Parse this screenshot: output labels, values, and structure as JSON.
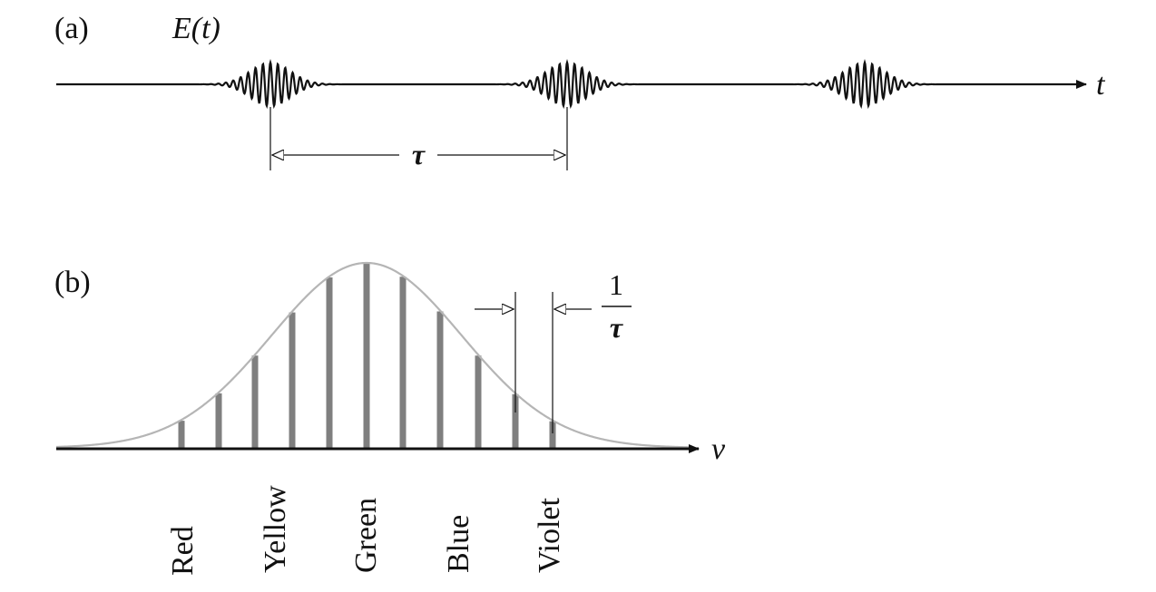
{
  "panel_a": {
    "label": "(a)",
    "signal_label": "E(t)",
    "axis_label": "t",
    "period_label": "τ"
  },
  "panel_b": {
    "label": "(b)",
    "axis_label": "ν",
    "spacing_numerator": "1",
    "spacing_denominator": "τ",
    "colors": [
      "Red",
      "Yellow",
      "Green",
      "Blue",
      "Violet"
    ]
  },
  "palette": {
    "ink": "#111111",
    "comb_line": "#7f7f7f",
    "envelope": "#b5b5b5"
  }
}
